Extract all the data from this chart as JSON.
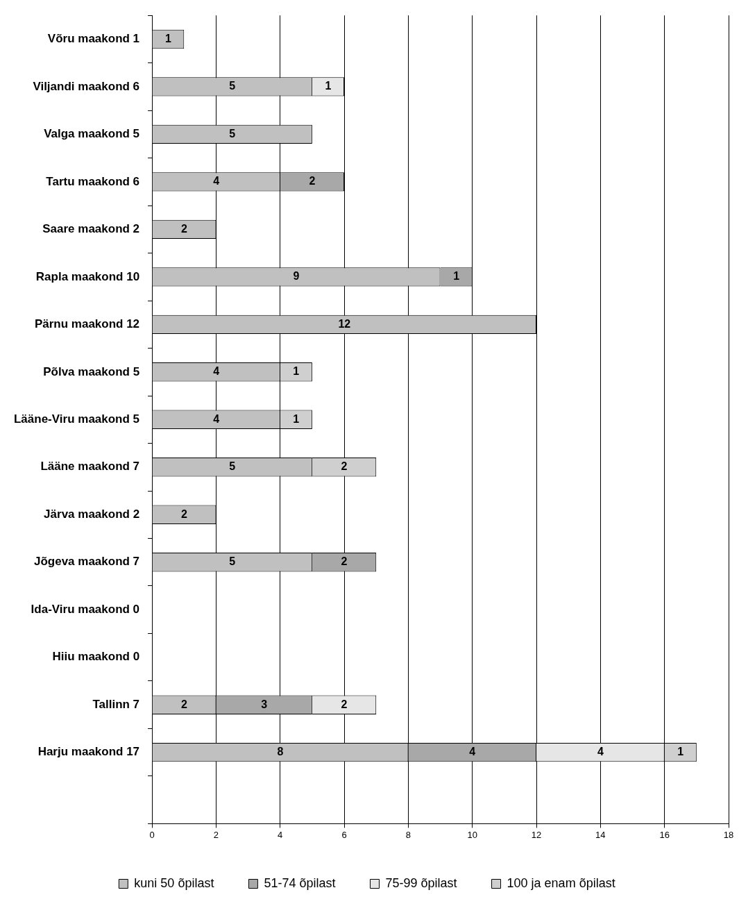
{
  "chart_data": {
    "type": "bar",
    "orientation": "horizontal",
    "stacked": true,
    "data_labels": true,
    "grid": "x",
    "legend": "bottom",
    "categories": [
      "Võru maakond 1",
      "Viljandi maakond 6",
      "Valga maakond 5",
      "Tartu maakond 6",
      "Saare maakond 2",
      "Rapla maakond 10",
      "Pärnu maakond 12",
      "Põlva maakond 5",
      "Lääne-Viru maakond 5",
      "Lääne maakond 7",
      "Järva maakond 2",
      "Jõgeva maakond 7",
      "Ida-Viru maakond 0",
      "Hiiu maakond 0",
      "Tallinn 7",
      "Harju maakond 17",
      null
    ],
    "xlim": [
      0,
      18
    ],
    "xticks": [
      0,
      2,
      4,
      6,
      8,
      10,
      12,
      14,
      16,
      18
    ],
    "series": [
      {
        "name": "kuni 50 õpilast",
        "color": "#c0c0c0",
        "values": [
          1,
          5,
          5,
          4,
          2,
          9,
          12,
          4,
          4,
          5,
          2,
          5,
          null,
          null,
          2,
          8,
          null
        ]
      },
      {
        "name": "51-74 õpilast",
        "color": "#a8a8a8",
        "values": [
          null,
          null,
          null,
          2,
          null,
          1,
          null,
          null,
          null,
          null,
          null,
          2,
          null,
          null,
          3,
          4,
          null
        ]
      },
      {
        "name": "75-99 õpilast",
        "color": "#e6e6e6",
        "values": [
          null,
          1,
          null,
          null,
          null,
          null,
          null,
          null,
          null,
          null,
          null,
          null,
          null,
          null,
          2,
          4,
          null
        ]
      },
      {
        "name": "100 ja enam õpilast",
        "color": "#cfcfcf",
        "values": [
          null,
          null,
          null,
          null,
          null,
          null,
          null,
          1,
          1,
          2,
          null,
          null,
          null,
          null,
          null,
          1,
          null
        ]
      }
    ]
  }
}
